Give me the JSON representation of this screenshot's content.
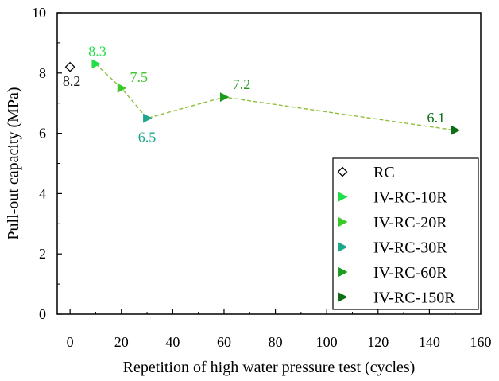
{
  "chart_data": {
    "type": "scatter",
    "title": "",
    "xlabel": "Repetition of high water pressure test (cycles)",
    "ylabel": "Pull-out capacity (MPa)",
    "xlim": [
      -5,
      160
    ],
    "ylim": [
      0,
      10
    ],
    "xticks": [
      0,
      20,
      40,
      60,
      80,
      100,
      120,
      140,
      160
    ],
    "yticks": [
      0,
      2,
      4,
      6,
      8,
      10
    ],
    "grid": false,
    "legend_position": "bottom-right",
    "connector": {
      "style": "dashed",
      "color": "#8fbe3a",
      "x": [
        10,
        20,
        30,
        60,
        150
      ],
      "y": [
        8.3,
        7.5,
        6.5,
        7.2,
        6.1
      ]
    },
    "series": [
      {
        "name": "RC",
        "x": 0,
        "y": 8.2,
        "label": "8.2",
        "marker": "diamond-open",
        "color": "#000000",
        "label_color": "#111111"
      },
      {
        "name": "IV-RC-10R",
        "x": 10,
        "y": 8.3,
        "label": "8.3",
        "marker": "triangle-right",
        "color": "#22dd4a",
        "label_color": "#22dd4a"
      },
      {
        "name": "IV-RC-20R",
        "x": 20,
        "y": 7.5,
        "label": "7.5",
        "marker": "triangle-right",
        "color": "#3cc82a",
        "label_color": "#3cc82a"
      },
      {
        "name": "IV-RC-30R",
        "x": 30,
        "y": 6.5,
        "label": "6.5",
        "marker": "triangle-right",
        "color": "#1fa78d",
        "label_color": "#1fa78d"
      },
      {
        "name": "IV-RC-60R",
        "x": 60,
        "y": 7.2,
        "label": "7.2",
        "marker": "triangle-right",
        "color": "#1e9a1e",
        "label_color": "#1e9a1e"
      },
      {
        "name": "IV-RC-150R",
        "x": 150,
        "y": 6.1,
        "label": "6.1",
        "marker": "triangle-right",
        "color": "#0e6e16",
        "label_color": "#0e6e16"
      }
    ]
  }
}
